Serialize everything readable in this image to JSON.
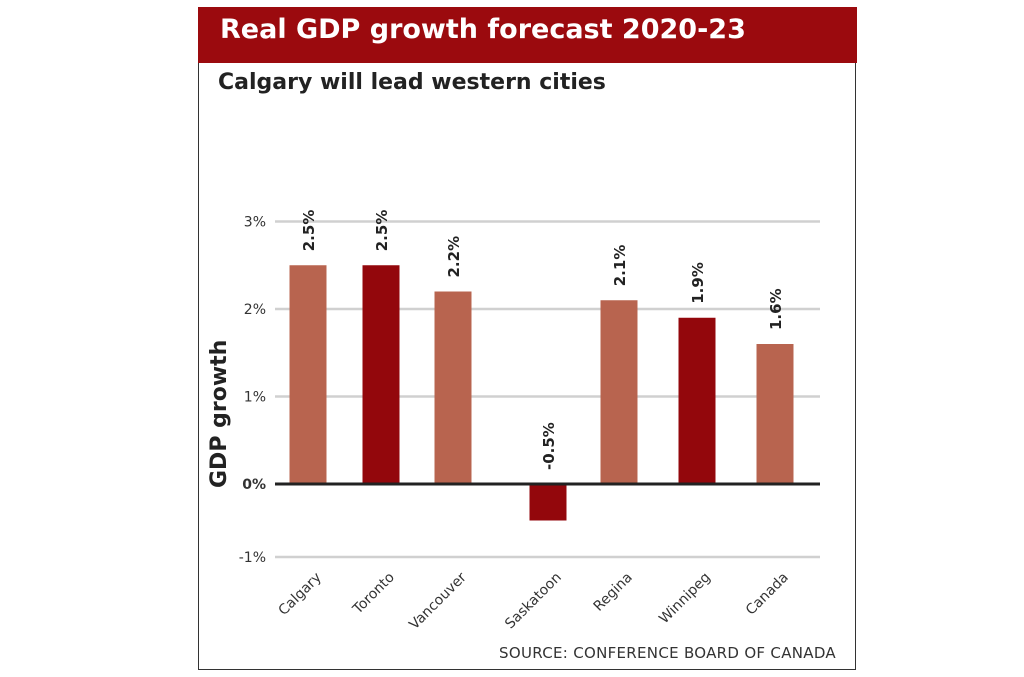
{
  "chart_data": {
    "type": "bar",
    "title": "Real GDP growth forecast 2020-23",
    "subtitle": "Calgary will lead western cities",
    "ylabel": "GDP growth",
    "xlabel": "",
    "source": "SOURCE: CONFERENCE BOARD OF CANADA",
    "categories": [
      "Calgary",
      "Toronto",
      "Vancouver",
      "Saskatoon",
      "Regina",
      "Winnipeg",
      "Canada"
    ],
    "values": [
      2.5,
      2.5,
      2.2,
      -0.5,
      2.1,
      1.9,
      1.6
    ],
    "data_labels": [
      "2.5%",
      "2.5%",
      "2.2%",
      "-0.5%",
      "2.1%",
      "1.9%",
      "1.6%"
    ],
    "bar_colors": [
      "#b8644f",
      "#93070c",
      "#b8644f",
      "#93070c",
      "#b8644f",
      "#93070c",
      "#b8644f"
    ],
    "yticks": [
      3,
      2,
      1,
      0,
      -1
    ],
    "ytick_labels": [
      "3%",
      "2%",
      "1%",
      "0%",
      "-1%"
    ],
    "ylim": [
      -1,
      3
    ],
    "grid": true,
    "legend": "none",
    "colors": {
      "header": "#9b0a0e",
      "light_bar": "#b8644f",
      "dark_bar": "#93070c"
    }
  }
}
